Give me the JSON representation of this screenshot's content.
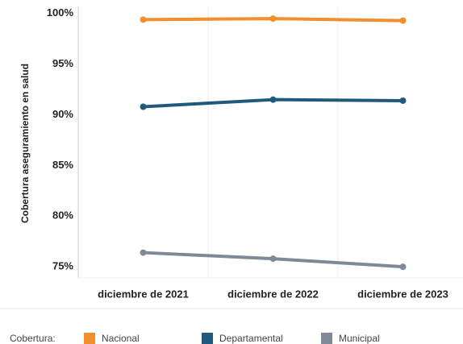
{
  "chart_data": {
    "type": "line",
    "y_label": "Cobertura aseguramiento en salud",
    "legend_title": "Cobertura:",
    "categories": [
      "diciembre de 2021",
      "diciembre de 2022",
      "diciembre de 2023"
    ],
    "series": [
      {
        "name": "Nacional",
        "color": "#f28e2b",
        "values": [
          99.4,
          99.5,
          99.3
        ]
      },
      {
        "name": "Departamental",
        "color": "#1f5a7d",
        "values": [
          90.8,
          91.5,
          91.4
        ]
      },
      {
        "name": "Municipal",
        "color": "#7f8a96",
        "values": [
          76.4,
          75.8,
          75.0
        ]
      }
    ],
    "ylim": [
      73.9,
      100.7
    ],
    "yticks": [
      {
        "value": 75,
        "label": "75%"
      },
      {
        "value": 80,
        "label": "80%"
      },
      {
        "value": 85,
        "label": "85%"
      },
      {
        "value": 90,
        "label": "90%"
      },
      {
        "value": 95,
        "label": "95%"
      },
      {
        "value": 100,
        "label": "100%"
      }
    ],
    "grid": false,
    "legend": "bottom"
  }
}
